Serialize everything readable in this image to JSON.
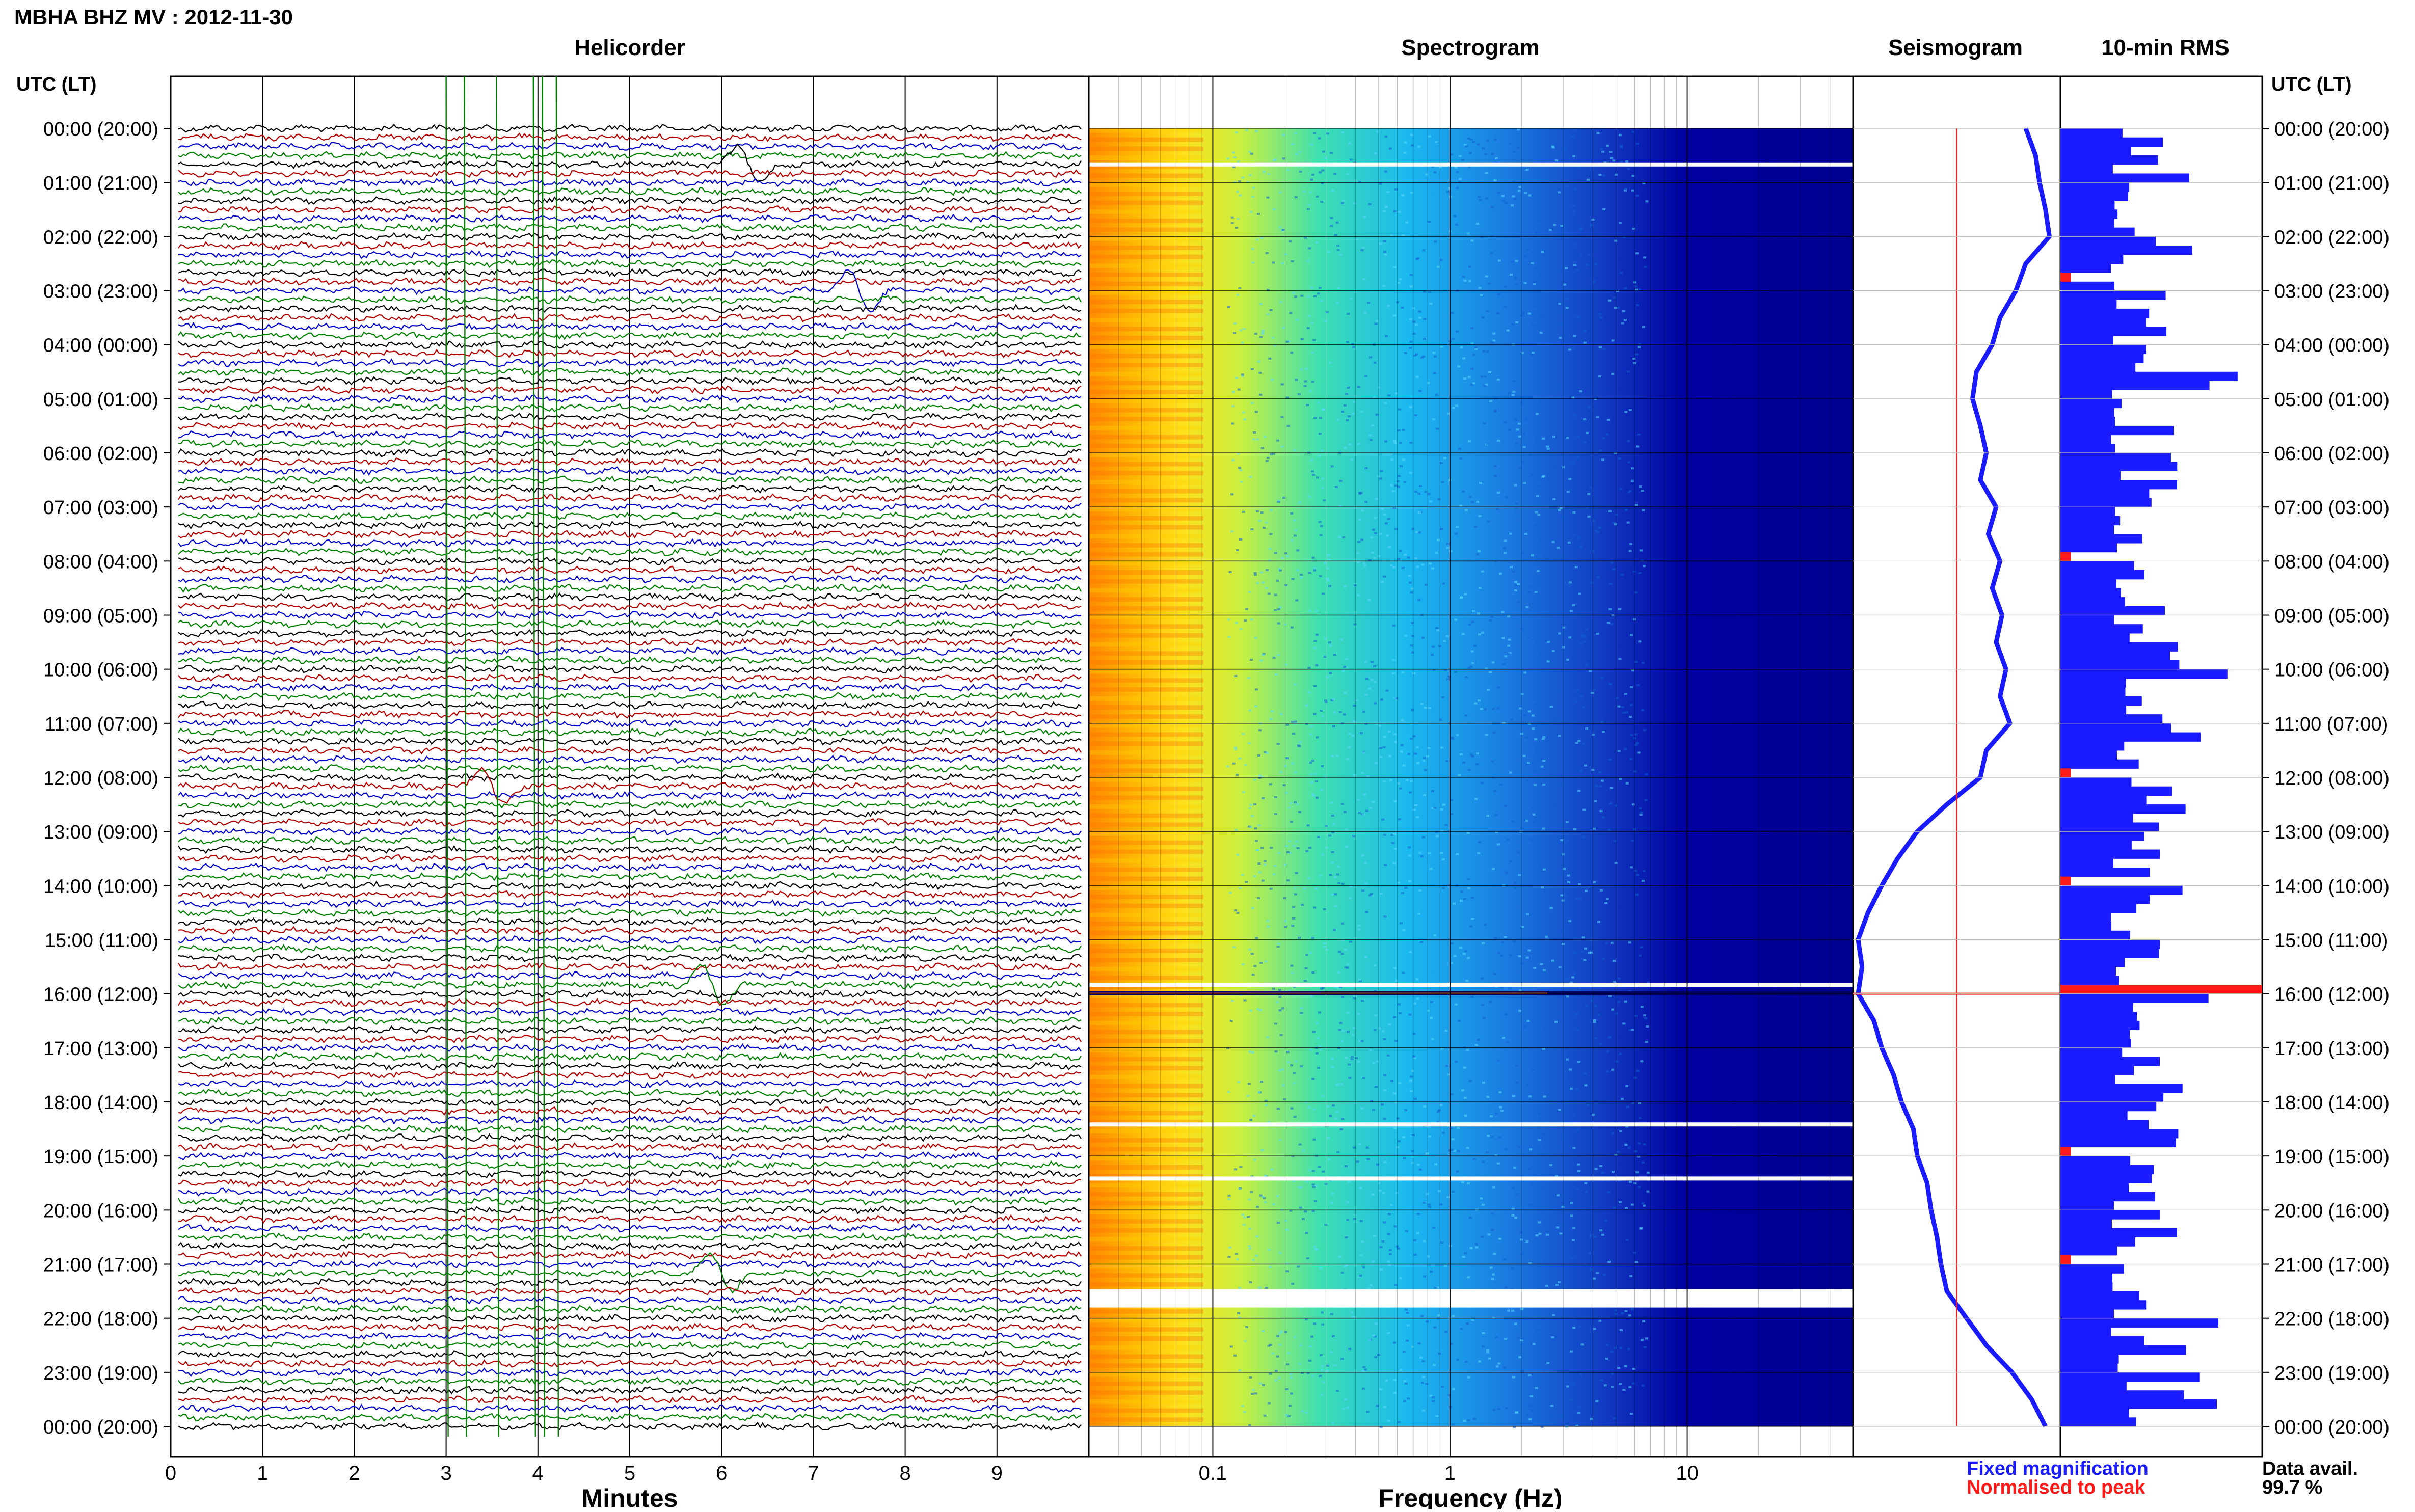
{
  "header": {
    "title": "MBHA BHZ MV : 2012-11-30"
  },
  "panels": {
    "helicorder": "Helicorder",
    "spectrogram": "Spectrogram",
    "seismogram": "Seismogram",
    "rms": "10-min RMS"
  },
  "axis_labels": {
    "utc_left": "UTC (LT)",
    "utc_right": "UTC (LT)",
    "minutes": "Minutes",
    "frequency": "Frequency (Hz)"
  },
  "time_ticks": [
    "00:00 (20:00)",
    "01:00 (21:00)",
    "02:00 (22:00)",
    "03:00 (23:00)",
    "04:00 (00:00)",
    "05:00 (01:00)",
    "06:00 (02:00)",
    "07:00 (03:00)",
    "08:00 (04:00)",
    "09:00 (05:00)",
    "10:00 (06:00)",
    "11:00 (07:00)",
    "12:00 (08:00)",
    "13:00 (09:00)",
    "14:00 (10:00)",
    "15:00 (11:00)",
    "16:00 (12:00)",
    "17:00 (13:00)",
    "18:00 (14:00)",
    "19:00 (15:00)",
    "20:00 (16:00)",
    "21:00 (17:00)",
    "22:00 (18:00)",
    "23:00 (19:00)",
    "00:00 (20:00)"
  ],
  "minute_ticks": [
    "0",
    "1",
    "2",
    "3",
    "4",
    "5",
    "6",
    "7",
    "8",
    "9"
  ],
  "freq_ticks": [
    "0.1",
    "1",
    "10"
  ],
  "legend": {
    "fixed": "Fixed magnification",
    "normalised": "Normalised to peak",
    "fixed_color": "#1a1aff",
    "normalised_color": "#ff1a1a"
  },
  "availability": {
    "label": "Data avail.",
    "value": "99.7 %"
  },
  "chart_data": [
    {
      "type": "line",
      "title": "Helicorder",
      "xlabel": "Minutes",
      "xlim": [
        0,
        10
      ],
      "rows": 144,
      "row_minutes": 10,
      "trace_colors": [
        "#000000",
        "#b30000",
        "#0000cc",
        "#008000"
      ],
      "events": [
        {
          "time_utc": "00:40",
          "minute": 6.3,
          "note": "green burst"
        },
        {
          "time_utc": "03:00",
          "minute": 7.5,
          "note": "long-period swing"
        },
        {
          "time_utc": "12:10",
          "minute": 3.5,
          "note": "long-period swing"
        },
        {
          "time_utc": "15:50",
          "minute": 5.9,
          "note": "burst"
        },
        {
          "time_utc": "21:10",
          "minute": 6.0,
          "note": "burst"
        }
      ]
    },
    {
      "type": "heatmap",
      "title": "Spectrogram",
      "xlabel": "Frequency (Hz)",
      "xscale": "log",
      "xlim": [
        0.03,
        50
      ],
      "ylim_hours": [
        0,
        24
      ],
      "colormap": "jet",
      "gaps_utc": [
        "00:40",
        "15:50",
        "18:25",
        "19:25",
        "21:30"
      ]
    },
    {
      "type": "line",
      "title": "Seismogram",
      "series": [
        {
          "name": "Fixed magnification",
          "color": "#1a1aff",
          "hours": [
            0,
            0.5,
            1,
            1.5,
            2,
            2.5,
            3,
            3.5,
            4,
            4.5,
            5,
            5.5,
            6,
            6.5,
            7,
            7.5,
            8,
            8.5,
            9,
            9.5,
            10,
            10.5,
            11,
            11.5,
            12,
            12.5,
            13,
            13.5,
            14,
            14.5,
            15,
            15.5,
            16,
            16.5,
            17,
            17.5,
            18,
            18.5,
            19,
            19.5,
            20,
            20.5,
            21,
            21.5,
            22,
            22.5,
            23,
            23.5,
            24
          ],
          "values": [
            0.85,
            0.9,
            0.92,
            0.95,
            0.97,
            0.85,
            0.8,
            0.72,
            0.68,
            0.6,
            0.58,
            0.62,
            0.65,
            0.62,
            0.7,
            0.66,
            0.72,
            0.68,
            0.73,
            0.7,
            0.75,
            0.72,
            0.77,
            0.65,
            0.62,
            0.45,
            0.3,
            0.2,
            0.12,
            0.05,
            0.0,
            0.02,
            0.0,
            0.08,
            0.12,
            0.18,
            0.22,
            0.28,
            0.3,
            0.35,
            0.37,
            0.4,
            0.42,
            0.45,
            0.55,
            0.65,
            0.78,
            0.88,
            0.95
          ]
        },
        {
          "name": "Normalised to peak",
          "color": "#ff1a1a",
          "constant": 0.5
        }
      ]
    },
    {
      "type": "bar",
      "title": "10-min RMS",
      "orientation": "horizontal",
      "bins": 144,
      "bar_color": "#1a1aff",
      "highlight_color": "#ff1a1a",
      "highlight_utc": [
        "02:40",
        "07:50",
        "11:50",
        "13:50",
        "15:50",
        "18:50",
        "20:50"
      ]
    }
  ]
}
